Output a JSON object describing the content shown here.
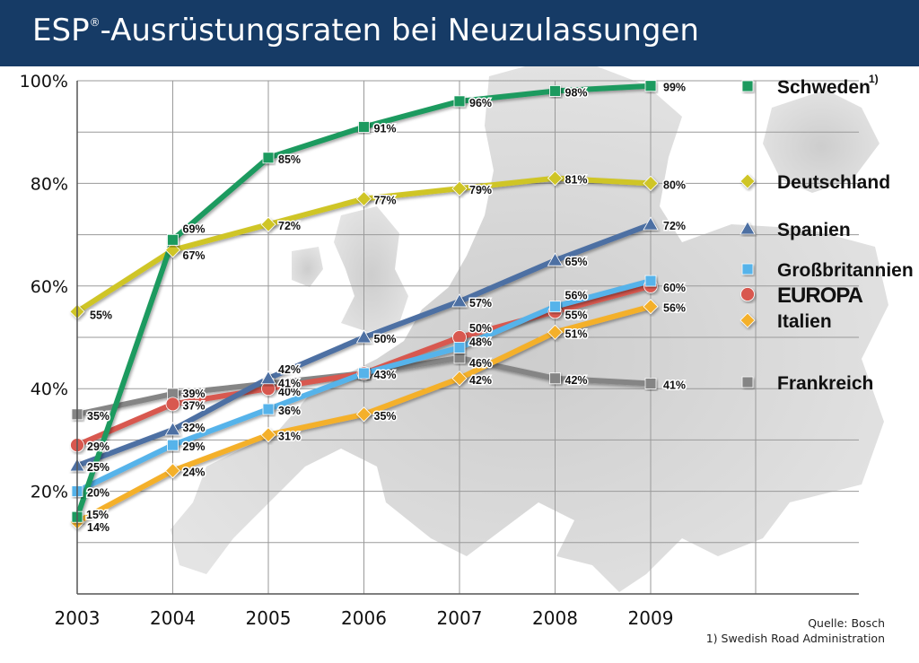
{
  "title": {
    "prefix": "ESP",
    "superscript": "®",
    "suffix": "-Ausrüstungsraten bei Neuzulassungen"
  },
  "source": {
    "line1": "Quelle: Bosch",
    "line2": "1) Swedish Road Administration"
  },
  "colors": {
    "header_bg": "#163b66",
    "schweden": "#1f9a5e",
    "deutschland": "#cfc528",
    "spanien": "#4d6fa3",
    "grossbritannien": "#56b3ea",
    "europa": "#d85850",
    "italien": "#f4b02c",
    "frankreich": "#858585"
  },
  "chart_data": {
    "type": "line",
    "title": "ESP®-Ausrüstungsraten bei Neuzulassungen",
    "xlabel": "",
    "ylabel": "",
    "x": [
      2003,
      2004,
      2005,
      2006,
      2007,
      2008,
      2009
    ],
    "y_ticks": [
      "20%",
      "40%",
      "60%",
      "80%",
      "100%"
    ],
    "ylim": [
      0,
      100
    ],
    "grid": true,
    "legend_position": "right",
    "series": [
      {
        "key": "schweden",
        "name": "Schweden",
        "legend_note": "1)",
        "marker": "square",
        "color": "#1f9a5e",
        "values": [
          15,
          69,
          85,
          91,
          96,
          98,
          99
        ],
        "labels": [
          "15%",
          "69%",
          "85%",
          "91%",
          "96%",
          "98%",
          "99%"
        ]
      },
      {
        "key": "deutschland",
        "name": "Deutschland",
        "marker": "diamond",
        "color": "#cfc528",
        "values": [
          55,
          67,
          72,
          77,
          79,
          81,
          80
        ],
        "labels": [
          "55%",
          "67%",
          "72%",
          "77%",
          "79%",
          "81%",
          "80%"
        ]
      },
      {
        "key": "spanien",
        "name": "Spanien",
        "marker": "triangle",
        "color": "#4d6fa3",
        "values": [
          25,
          32,
          42,
          50,
          57,
          65,
          72
        ],
        "labels": [
          "25%",
          "32%",
          "42%",
          "50%",
          "57%",
          "65%",
          "72%"
        ]
      },
      {
        "key": "grossbritannien",
        "name": "Großbritannien",
        "marker": "square",
        "color": "#56b3ea",
        "values": [
          20,
          29,
          36,
          43,
          48,
          56,
          61
        ],
        "labels": [
          "20%",
          "29%",
          "36%",
          "",
          "48%",
          "56%",
          ""
        ]
      },
      {
        "key": "europa",
        "name": "EUROPA",
        "marker": "circle",
        "color": "#d85850",
        "values": [
          29,
          37,
          40,
          43,
          50,
          55,
          60
        ],
        "labels": [
          "29%",
          "37%",
          "40%",
          "43%",
          "50%",
          "55%",
          "60%"
        ]
      },
      {
        "key": "italien",
        "name": "Italien",
        "marker": "diamond",
        "color": "#f4b02c",
        "values": [
          14,
          24,
          31,
          35,
          42,
          51,
          56
        ],
        "labels": [
          "14%",
          "24%",
          "31%",
          "35%",
          "42%",
          "51%",
          "56%"
        ]
      },
      {
        "key": "frankreich",
        "name": "Frankreich",
        "marker": "square",
        "color": "#858585",
        "values": [
          35,
          39,
          41,
          43,
          46,
          42,
          41
        ],
        "labels": [
          "35%",
          "39%",
          "41%",
          "",
          "46%",
          "42%",
          "41%"
        ]
      }
    ]
  }
}
